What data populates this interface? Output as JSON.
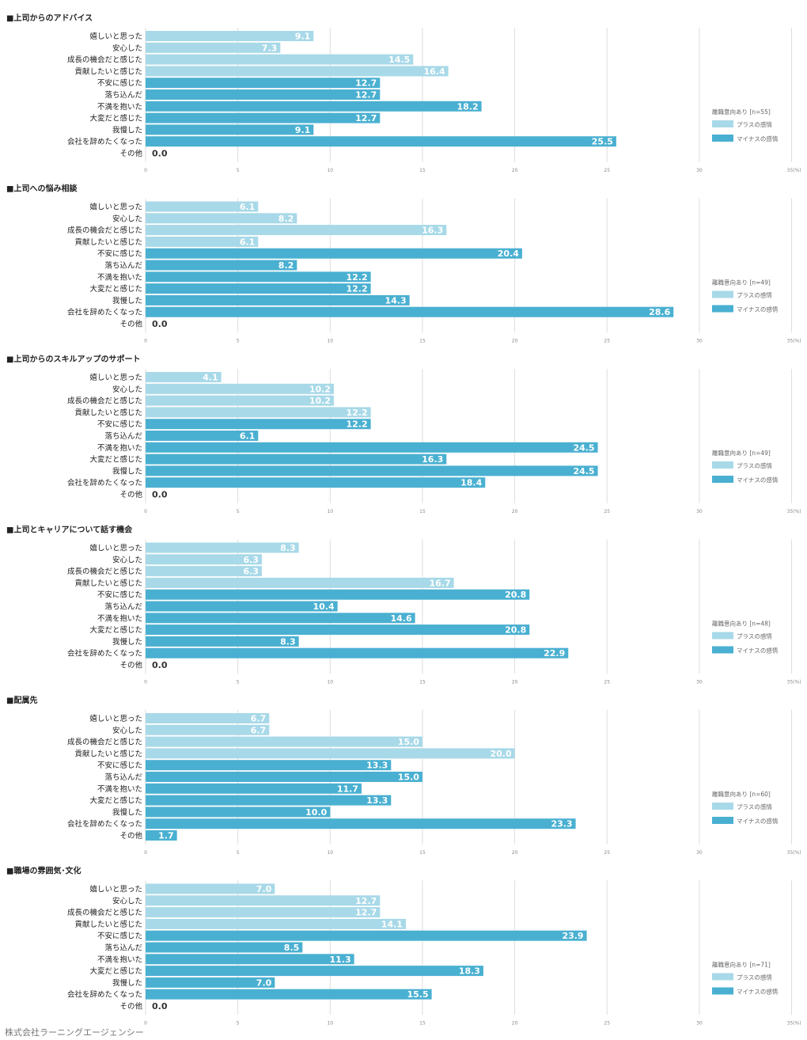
{
  "colors": {
    "plus": "#a8d9e8",
    "minus": "#4ab0d1",
    "grid": "#dddddd"
  },
  "legend": {
    "plus_label": "プラスの感情",
    "minus_label": "マイナスの感情"
  },
  "footer": "株式会社ラーニングエージェンシー",
  "chart_data": [
    {
      "type": "bar",
      "orientation": "horizontal",
      "title": "■上司からのアドバイス",
      "legend_title": "離職意向あり [n=55]",
      "categories": [
        "嬉しいと思った",
        "安心した",
        "成長の機会だと感じた",
        "貢献したいと感じた",
        "不安に感じた",
        "落ち込んだ",
        "不満を抱いた",
        "大変だと感じた",
        "我慢した",
        "会社を辞めたくなった",
        "その他"
      ],
      "values": [
        9.1,
        7.3,
        14.5,
        16.4,
        12.7,
        12.7,
        18.2,
        12.7,
        9.1,
        25.5,
        0.0
      ],
      "value_labels": [
        "9.1",
        "7.3",
        "14.5",
        "16.4",
        "12.7",
        "12.7",
        "18.2",
        "12.7",
        "9.1",
        "25.5",
        "0.0"
      ],
      "groups": [
        "plus",
        "plus",
        "plus",
        "plus",
        "minus",
        "minus",
        "minus",
        "minus",
        "minus",
        "minus",
        "minus"
      ],
      "xticks": [
        "0",
        "5",
        "10",
        "15",
        "20",
        "25",
        "30",
        "35(%)"
      ],
      "xlim": [
        0,
        35
      ]
    },
    {
      "type": "bar",
      "orientation": "horizontal",
      "title": "■上司への悩み相談",
      "legend_title": "離職意向あり [n=49]",
      "categories": [
        "嬉しいと思った",
        "安心した",
        "成長の機会だと感じた",
        "貢献したいと感じた",
        "不安に感じた",
        "落ち込んだ",
        "不満を抱いた",
        "大変だと感じた",
        "我慢した",
        "会社を辞めたくなった",
        "その他"
      ],
      "values": [
        6.1,
        8.2,
        16.3,
        6.1,
        20.4,
        8.2,
        12.2,
        12.2,
        14.3,
        28.6,
        0.0
      ],
      "value_labels": [
        "6.1",
        "8.2",
        "16.3",
        "6.1",
        "20.4",
        "8.2",
        "12.2",
        "12.2",
        "14.3",
        "28.6",
        "0.0"
      ],
      "groups": [
        "plus",
        "plus",
        "plus",
        "plus",
        "minus",
        "minus",
        "minus",
        "minus",
        "minus",
        "minus",
        "minus"
      ],
      "xticks": [
        "0",
        "5",
        "10",
        "15",
        "20",
        "25",
        "30",
        "35(%)"
      ],
      "xlim": [
        0,
        35
      ]
    },
    {
      "type": "bar",
      "orientation": "horizontal",
      "title": "■上司からのスキルアップのサポート",
      "legend_title": "離職意向あり [n=49]",
      "categories": [
        "嬉しいと思った",
        "安心した",
        "成長の機会だと感じた",
        "貢献したいと感じた",
        "不安に感じた",
        "落ち込んだ",
        "不満を抱いた",
        "大変だと感じた",
        "我慢した",
        "会社を辞めたくなった",
        "その他"
      ],
      "values": [
        4.1,
        10.2,
        10.2,
        12.2,
        12.2,
        6.1,
        24.5,
        16.3,
        24.5,
        18.4,
        0.0
      ],
      "value_labels": [
        "4.1",
        "10.2",
        "10.2",
        "12.2",
        "12.2",
        "6.1",
        "24.5",
        "16.3",
        "24.5",
        "18.4",
        "0.0"
      ],
      "groups": [
        "plus",
        "plus",
        "plus",
        "plus",
        "minus",
        "minus",
        "minus",
        "minus",
        "minus",
        "minus",
        "minus"
      ],
      "xticks": [
        "0",
        "5",
        "10",
        "15",
        "20",
        "25",
        "30",
        "35(%)"
      ],
      "xlim": [
        0,
        35
      ]
    },
    {
      "type": "bar",
      "orientation": "horizontal",
      "title": "■上司とキャリアについて話す機会",
      "legend_title": "離職意向あり [n=48]",
      "categories": [
        "嬉しいと思った",
        "安心した",
        "成長の機会だと感じた",
        "貢献したいと感じた",
        "不安に感じた",
        "落ち込んだ",
        "不満を抱いた",
        "大変だと感じた",
        "我慢した",
        "会社を辞めたくなった",
        "その他"
      ],
      "values": [
        8.3,
        6.3,
        6.3,
        16.7,
        20.8,
        10.4,
        14.6,
        20.8,
        8.3,
        22.9,
        0.0
      ],
      "value_labels": [
        "8.3",
        "6.3",
        "6.3",
        "16.7",
        "20.8",
        "10.4",
        "14.6",
        "20.8",
        "8.3",
        "22.9",
        "0.0"
      ],
      "groups": [
        "plus",
        "plus",
        "plus",
        "plus",
        "minus",
        "minus",
        "minus",
        "minus",
        "minus",
        "minus",
        "minus"
      ],
      "xticks": [
        "0",
        "5",
        "10",
        "15",
        "20",
        "25",
        "30",
        "35(%)"
      ],
      "xlim": [
        0,
        35
      ]
    },
    {
      "type": "bar",
      "orientation": "horizontal",
      "title": "■配属先",
      "legend_title": "離職意向あり [n=60]",
      "categories": [
        "嬉しいと思った",
        "安心した",
        "成長の機会だと感じた",
        "貢献したいと感じた",
        "不安に感じた",
        "落ち込んだ",
        "不満を抱いた",
        "大変だと感じた",
        "我慢した",
        "会社を辞めたくなった",
        "その他"
      ],
      "values": [
        6.7,
        6.7,
        15.0,
        20.0,
        13.3,
        15.0,
        11.7,
        13.3,
        10.0,
        23.3,
        1.7
      ],
      "value_labels": [
        "6.7",
        "6.7",
        "15.0",
        "20.0",
        "13.3",
        "15.0",
        "11.7",
        "13.3",
        "10.0",
        "23.3",
        "1.7"
      ],
      "groups": [
        "plus",
        "plus",
        "plus",
        "plus",
        "minus",
        "minus",
        "minus",
        "minus",
        "minus",
        "minus",
        "minus"
      ],
      "xticks": [
        "0",
        "5",
        "10",
        "15",
        "20",
        "25",
        "30",
        "35(%)"
      ],
      "xlim": [
        0,
        35
      ]
    },
    {
      "type": "bar",
      "orientation": "horizontal",
      "title": "■職場の雰囲気･文化",
      "legend_title": "離職意向あり [n=71]",
      "categories": [
        "嬉しいと思った",
        "安心した",
        "成長の機会だと感じた",
        "貢献したいと感じた",
        "不安に感じた",
        "落ち込んだ",
        "不満を抱いた",
        "大変だと感じた",
        "我慢した",
        "会社を辞めたくなった",
        "その他"
      ],
      "values": [
        7.0,
        12.7,
        12.7,
        14.1,
        23.9,
        8.5,
        11.3,
        18.3,
        7.0,
        15.5,
        0.0
      ],
      "value_labels": [
        "7.0",
        "12.7",
        "12.7",
        "14.1",
        "23.9",
        "8.5",
        "11.3",
        "18.3",
        "7.0",
        "15.5",
        "0.0"
      ],
      "groups": [
        "plus",
        "plus",
        "plus",
        "plus",
        "minus",
        "minus",
        "minus",
        "minus",
        "minus",
        "minus",
        "minus"
      ],
      "xticks": [
        "0",
        "5",
        "10",
        "15",
        "20",
        "25",
        "30",
        "35(%)"
      ],
      "xlim": [
        0,
        35
      ]
    }
  ]
}
